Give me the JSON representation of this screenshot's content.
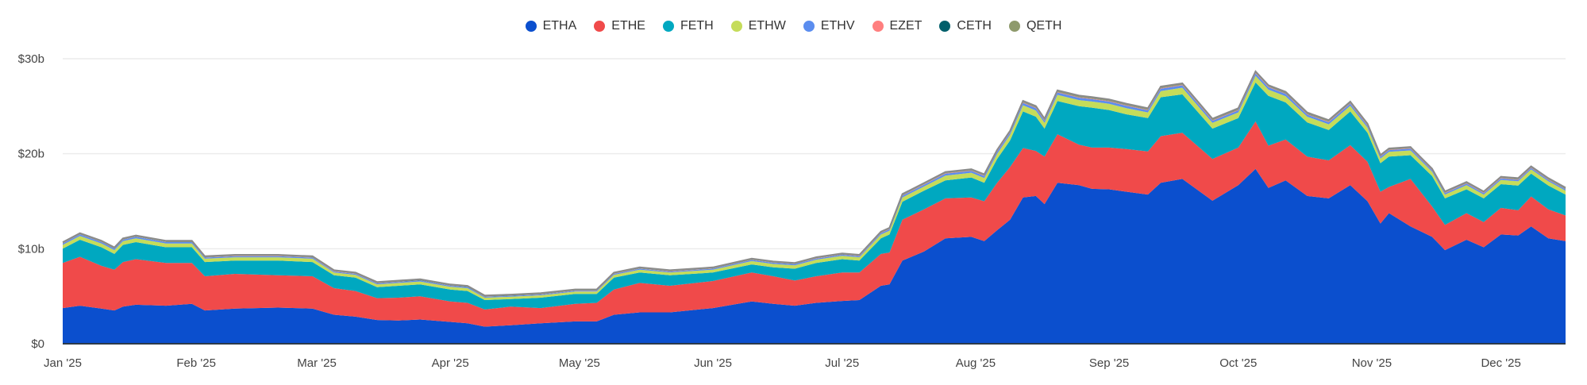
{
  "chart_data": {
    "type": "area",
    "stacked": true,
    "title": "",
    "xlabel": "",
    "ylabel": "",
    "ylim": [
      0,
      30
    ],
    "y_ticks": [
      {
        "v": 0,
        "label": "$0"
      },
      {
        "v": 10,
        "label": "$10b"
      },
      {
        "v": 20,
        "label": "$20b"
      },
      {
        "v": 30,
        "label": "$30b"
      }
    ],
    "x_ticks": [
      {
        "date": "2025-01-01",
        "label": "Jan '25"
      },
      {
        "date": "2025-02-01",
        "label": "Feb '25"
      },
      {
        "date": "2025-03-01",
        "label": "Mar '25"
      },
      {
        "date": "2025-04-01",
        "label": "Apr '25"
      },
      {
        "date": "2025-05-01",
        "label": "May '25"
      },
      {
        "date": "2025-06-01",
        "label": "Jun '25"
      },
      {
        "date": "2025-07-01",
        "label": "Jul '25"
      },
      {
        "date": "2025-08-01",
        "label": "Aug '25"
      },
      {
        "date": "2025-09-01",
        "label": "Sep '25"
      },
      {
        "date": "2025-10-01",
        "label": "Oct '25"
      },
      {
        "date": "2025-11-01",
        "label": "Nov '25"
      },
      {
        "date": "2025-12-01",
        "label": "Dec '25"
      }
    ],
    "grid": "horizontal",
    "legend_position": "top-center",
    "x": [
      "2025-01-01",
      "2025-01-05",
      "2025-01-10",
      "2025-01-13",
      "2025-01-15",
      "2025-01-18",
      "2025-01-25",
      "2025-01-31",
      "2025-02-03",
      "2025-02-10",
      "2025-02-20",
      "2025-02-28",
      "2025-03-05",
      "2025-03-10",
      "2025-03-15",
      "2025-03-20",
      "2025-03-25",
      "2025-04-01",
      "2025-04-05",
      "2025-04-09",
      "2025-04-15",
      "2025-04-22",
      "2025-04-30",
      "2025-05-05",
      "2025-05-09",
      "2025-05-15",
      "2025-05-22",
      "2025-06-01",
      "2025-06-10",
      "2025-06-15",
      "2025-06-20",
      "2025-06-25",
      "2025-07-01",
      "2025-07-05",
      "2025-07-10",
      "2025-07-12",
      "2025-07-15",
      "2025-07-20",
      "2025-07-25",
      "2025-07-31",
      "2025-08-03",
      "2025-08-06",
      "2025-08-09",
      "2025-08-12",
      "2025-08-15",
      "2025-08-17",
      "2025-08-20",
      "2025-08-25",
      "2025-08-28",
      "2025-09-01",
      "2025-09-05",
      "2025-09-10",
      "2025-09-13",
      "2025-09-18",
      "2025-09-25",
      "2025-10-01",
      "2025-10-05",
      "2025-10-08",
      "2025-10-12",
      "2025-10-17",
      "2025-10-22",
      "2025-10-27",
      "2025-10-31",
      "2025-11-03",
      "2025-11-05",
      "2025-11-10",
      "2025-11-15",
      "2025-11-18",
      "2025-11-23",
      "2025-11-27",
      "2025-12-01",
      "2025-12-05",
      "2025-12-08",
      "2025-12-12",
      "2025-12-16"
    ],
    "series": [
      {
        "name": "ETHA",
        "color": "#0b4fce",
        "values": [
          3.75,
          4.0,
          3.7,
          3.5,
          3.9,
          4.1,
          4.0,
          4.2,
          3.5,
          3.7,
          3.8,
          3.7,
          3.05,
          2.85,
          2.5,
          2.45,
          2.55,
          2.3,
          2.15,
          1.8,
          1.95,
          2.15,
          2.35,
          2.35,
          3.05,
          3.3,
          3.3,
          3.75,
          4.45,
          4.2,
          4.0,
          4.3,
          4.5,
          4.6,
          6.1,
          6.25,
          8.75,
          9.7,
          11.1,
          11.25,
          10.8,
          11.95,
          13.05,
          15.4,
          15.55,
          14.7,
          16.95,
          16.7,
          16.3,
          16.25,
          16.0,
          15.7,
          16.95,
          17.35,
          15.05,
          16.7,
          18.4,
          16.4,
          17.2,
          15.55,
          15.3,
          16.7,
          15.0,
          12.65,
          13.75,
          12.35,
          11.25,
          9.85,
          10.95,
          10.15,
          11.5,
          11.4,
          12.35,
          11.1,
          10.8
        ]
      },
      {
        "name": "ETHE",
        "color": "#f04a4a",
        "values": [
          4.75,
          5.15,
          4.5,
          4.3,
          4.7,
          4.8,
          4.5,
          4.3,
          3.6,
          3.65,
          3.4,
          3.4,
          2.8,
          2.7,
          2.3,
          2.4,
          2.45,
          2.15,
          2.15,
          1.8,
          1.95,
          1.6,
          1.85,
          1.95,
          2.65,
          3.1,
          2.8,
          2.85,
          3.05,
          2.9,
          2.65,
          2.8,
          3.0,
          2.9,
          3.35,
          3.35,
          4.3,
          4.45,
          4.2,
          4.15,
          4.2,
          5.0,
          5.55,
          5.2,
          4.75,
          5.0,
          5.1,
          4.25,
          4.35,
          4.4,
          4.5,
          4.55,
          4.9,
          4.85,
          4.4,
          3.95,
          5.0,
          4.45,
          4.3,
          4.15,
          4.0,
          4.2,
          4.15,
          3.35,
          2.75,
          5.0,
          3.2,
          2.65,
          2.8,
          2.65,
          2.8,
          2.65,
          3.15,
          3.05,
          2.7
        ]
      },
      {
        "name": "FETH",
        "color": "#00a8c0",
        "values": [
          1.5,
          1.8,
          1.95,
          1.65,
          1.8,
          1.8,
          1.65,
          1.65,
          1.5,
          1.4,
          1.55,
          1.5,
          1.35,
          1.4,
          1.15,
          1.25,
          1.25,
          1.25,
          1.25,
          1.0,
          0.8,
          1.1,
          1.05,
          0.95,
          1.25,
          1.1,
          1.1,
          0.9,
          0.85,
          0.95,
          1.25,
          1.4,
          1.4,
          1.25,
          1.65,
          1.9,
          1.9,
          1.95,
          1.9,
          2.1,
          1.95,
          2.5,
          2.8,
          3.85,
          3.6,
          2.95,
          3.5,
          4.05,
          4.2,
          3.95,
          3.65,
          3.5,
          4.1,
          4.05,
          3.2,
          3.1,
          4.1,
          5.25,
          3.9,
          3.6,
          3.2,
          3.55,
          3.05,
          3.0,
          3.2,
          2.5,
          3.2,
          2.8,
          2.5,
          2.5,
          2.5,
          2.6,
          2.4,
          2.5,
          2.2
        ]
      },
      {
        "name": "ETHW",
        "color": "#c5dc5a",
        "values": [
          0.4,
          0.4,
          0.4,
          0.4,
          0.4,
          0.4,
          0.4,
          0.4,
          0.35,
          0.35,
          0.35,
          0.35,
          0.3,
          0.3,
          0.3,
          0.3,
          0.3,
          0.3,
          0.3,
          0.25,
          0.25,
          0.25,
          0.25,
          0.25,
          0.3,
          0.3,
          0.3,
          0.3,
          0.35,
          0.35,
          0.35,
          0.35,
          0.35,
          0.35,
          0.4,
          0.4,
          0.45,
          0.45,
          0.5,
          0.5,
          0.5,
          0.55,
          0.6,
          0.65,
          0.65,
          0.6,
          0.65,
          0.65,
          0.65,
          0.65,
          0.65,
          0.6,
          0.65,
          0.7,
          0.6,
          0.6,
          0.7,
          0.65,
          0.65,
          0.6,
          0.6,
          0.6,
          0.55,
          0.5,
          0.5,
          0.5,
          0.45,
          0.4,
          0.45,
          0.4,
          0.45,
          0.45,
          0.45,
          0.45,
          0.4
        ]
      },
      {
        "name": "ETHV",
        "color": "#5b8def",
        "values": [
          0.15,
          0.15,
          0.15,
          0.15,
          0.15,
          0.15,
          0.15,
          0.15,
          0.12,
          0.12,
          0.12,
          0.12,
          0.1,
          0.1,
          0.1,
          0.1,
          0.1,
          0.1,
          0.1,
          0.08,
          0.08,
          0.08,
          0.08,
          0.08,
          0.1,
          0.1,
          0.1,
          0.1,
          0.12,
          0.12,
          0.12,
          0.12,
          0.12,
          0.12,
          0.15,
          0.15,
          0.18,
          0.18,
          0.2,
          0.2,
          0.2,
          0.22,
          0.22,
          0.25,
          0.25,
          0.22,
          0.25,
          0.25,
          0.25,
          0.25,
          0.25,
          0.22,
          0.25,
          0.25,
          0.22,
          0.22,
          0.25,
          0.25,
          0.25,
          0.22,
          0.22,
          0.22,
          0.2,
          0.18,
          0.18,
          0.18,
          0.15,
          0.15,
          0.15,
          0.15,
          0.15,
          0.15,
          0.15,
          0.15,
          0.15
        ]
      },
      {
        "name": "EZET",
        "color": "#ff7f7f",
        "values": [
          0.02,
          0.02,
          0.02,
          0.02,
          0.02,
          0.02,
          0.02,
          0.02,
          0.02,
          0.02,
          0.02,
          0.02,
          0.02,
          0.02,
          0.02,
          0.02,
          0.02,
          0.02,
          0.02,
          0.02,
          0.02,
          0.02,
          0.02,
          0.02,
          0.02,
          0.02,
          0.02,
          0.02,
          0.02,
          0.02,
          0.02,
          0.02,
          0.02,
          0.02,
          0.03,
          0.03,
          0.04,
          0.04,
          0.04,
          0.04,
          0.04,
          0.05,
          0.05,
          0.05,
          0.05,
          0.05,
          0.05,
          0.05,
          0.05,
          0.05,
          0.05,
          0.05,
          0.05,
          0.05,
          0.05,
          0.05,
          0.05,
          0.05,
          0.05,
          0.05,
          0.05,
          0.05,
          0.05,
          0.04,
          0.04,
          0.04,
          0.04,
          0.04,
          0.04,
          0.04,
          0.04,
          0.04,
          0.04,
          0.04,
          0.04
        ]
      },
      {
        "name": "CETH",
        "color": "#005f6b",
        "values": [
          0.02,
          0.02,
          0.02,
          0.02,
          0.02,
          0.02,
          0.02,
          0.02,
          0.02,
          0.02,
          0.02,
          0.02,
          0.02,
          0.02,
          0.02,
          0.02,
          0.02,
          0.02,
          0.02,
          0.02,
          0.02,
          0.02,
          0.02,
          0.02,
          0.02,
          0.02,
          0.02,
          0.02,
          0.02,
          0.02,
          0.02,
          0.02,
          0.02,
          0.02,
          0.02,
          0.02,
          0.02,
          0.02,
          0.02,
          0.02,
          0.02,
          0.02,
          0.02,
          0.02,
          0.02,
          0.02,
          0.02,
          0.02,
          0.02,
          0.02,
          0.02,
          0.02,
          0.02,
          0.02,
          0.02,
          0.02,
          0.02,
          0.02,
          0.02,
          0.02,
          0.02,
          0.02,
          0.02,
          0.02,
          0.02,
          0.02,
          0.02,
          0.02,
          0.02,
          0.02,
          0.02,
          0.02,
          0.02,
          0.02,
          0.02
        ]
      },
      {
        "name": "QETH",
        "color": "#8e9a6c",
        "values": [
          0.1,
          0.1,
          0.1,
          0.1,
          0.1,
          0.1,
          0.1,
          0.1,
          0.1,
          0.1,
          0.1,
          0.1,
          0.1,
          0.1,
          0.1,
          0.1,
          0.1,
          0.1,
          0.1,
          0.1,
          0.1,
          0.1,
          0.1,
          0.1,
          0.1,
          0.1,
          0.1,
          0.1,
          0.1,
          0.1,
          0.1,
          0.1,
          0.1,
          0.1,
          0.1,
          0.1,
          0.12,
          0.12,
          0.12,
          0.12,
          0.12,
          0.12,
          0.12,
          0.15,
          0.15,
          0.15,
          0.15,
          0.15,
          0.15,
          0.15,
          0.15,
          0.15,
          0.15,
          0.15,
          0.15,
          0.15,
          0.15,
          0.15,
          0.15,
          0.15,
          0.15,
          0.15,
          0.15,
          0.12,
          0.12,
          0.12,
          0.12,
          0.12,
          0.12,
          0.12,
          0.12,
          0.12,
          0.12,
          0.12,
          0.12
        ]
      }
    ]
  }
}
